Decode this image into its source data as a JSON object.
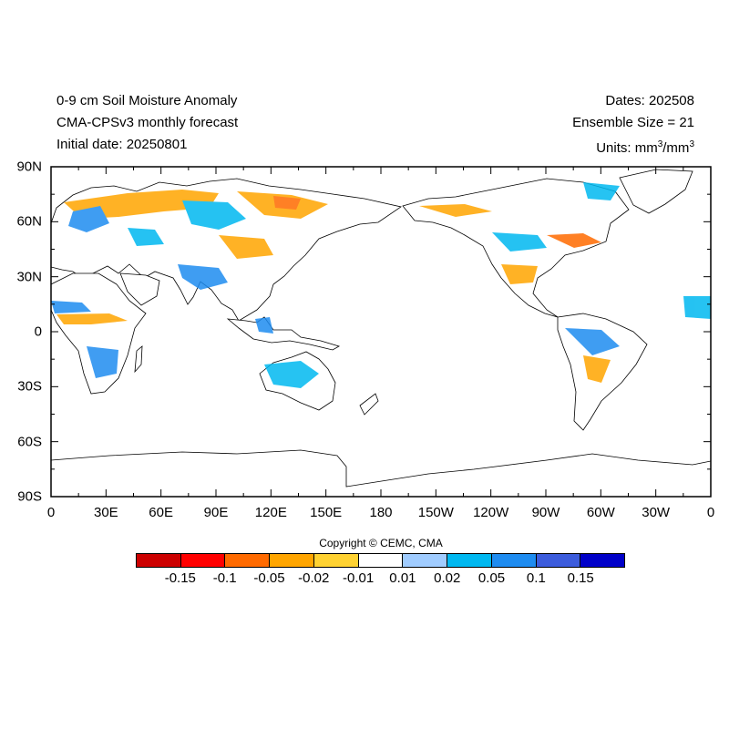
{
  "header": {
    "title_line1": "0-9 cm Soil Moisture Anomaly",
    "title_line2": "CMA-CPSv3 monthly forecast",
    "title_line3": "Initial date: 20250801",
    "dates": "Dates: 202508",
    "ensemble": "Ensemble Size = 21",
    "units_prefix": "Units: mm",
    "units_sup1": "3",
    "units_mid": "/mm",
    "units_sup2": "3"
  },
  "axes": {
    "y_labels": [
      "90N",
      "60N",
      "30N",
      "0",
      "30S",
      "60S",
      "90S"
    ],
    "x_labels": [
      "0",
      "30E",
      "60E",
      "90E",
      "120E",
      "150E",
      "180",
      "150W",
      "120W",
      "90W",
      "60W",
      "30W",
      "0"
    ]
  },
  "copyright": "Copyright © CEMC, CMA",
  "colorbar": {
    "colors": [
      "#cc0000",
      "#ff0000",
      "#ff6a00",
      "#ffa500",
      "#ffd232",
      "#ffffff",
      "#a0ccff",
      "#00b8f0",
      "#1e8cf0",
      "#3c5cdc",
      "#0000c8"
    ],
    "labels": [
      "-0.15",
      "-0.1",
      "-0.05",
      "-0.02",
      "-0.01",
      "0.01",
      "0.02",
      "0.05",
      "0.1",
      "0.15"
    ]
  },
  "map": {
    "lon_range": [
      0,
      360
    ],
    "lat_range": [
      -90,
      90
    ],
    "projection": "cylindrical equidistant, centered 180"
  }
}
